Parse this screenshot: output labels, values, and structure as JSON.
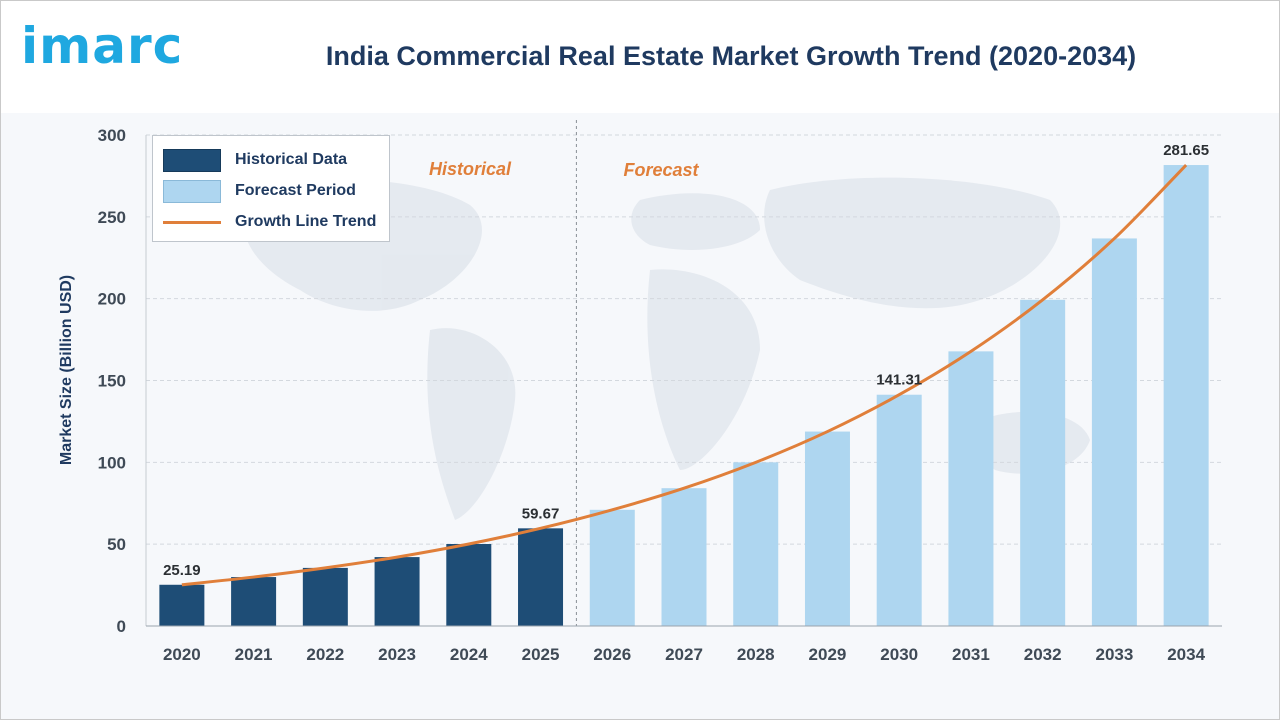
{
  "brand": {
    "logo_text": "imarc"
  },
  "chart_data": {
    "type": "bar",
    "title": "India Commercial Real Estate Market Growth Trend (2020-2034)",
    "ylabel": "Market Size (Billion USD)",
    "xlabel": "",
    "ylim": [
      0,
      300
    ],
    "yticks": [
      0,
      50,
      100,
      150,
      200,
      250,
      300
    ],
    "categories": [
      "2020",
      "2021",
      "2022",
      "2023",
      "2024",
      "2025",
      "2026",
      "2027",
      "2028",
      "2029",
      "2030",
      "2031",
      "2032",
      "2033",
      "2034"
    ],
    "series": [
      {
        "name": "Historical Data",
        "values": [
          25.19,
          29.9,
          35.5,
          42.1,
          50.1,
          59.67,
          null,
          null,
          null,
          null,
          null,
          null,
          null,
          null,
          null
        ],
        "color": "#1e4d76"
      },
      {
        "name": "Forecast Period",
        "values": [
          null,
          null,
          null,
          null,
          null,
          null,
          71.0,
          84.2,
          100.0,
          118.8,
          141.31,
          167.8,
          199.3,
          236.8,
          281.65
        ],
        "color": "#aed6f0"
      },
      {
        "name": "Growth Line Trend",
        "type": "line",
        "values": [
          25.19,
          29.9,
          35.5,
          42.1,
          50.1,
          59.67,
          71.0,
          84.2,
          100.0,
          118.8,
          141.31,
          167.8,
          199.3,
          236.8,
          281.65
        ],
        "color": "#e07f3a"
      }
    ],
    "data_labels": [
      {
        "category": "2020",
        "text": "25.19"
      },
      {
        "category": "2025",
        "text": "59.67"
      },
      {
        "category": "2030",
        "text": "141.31"
      },
      {
        "category": "2034",
        "text": "281.65"
      }
    ],
    "region_labels": {
      "historical": "Historical",
      "forecast": "Forecast"
    },
    "grid": true,
    "legend_position": "top-left"
  }
}
